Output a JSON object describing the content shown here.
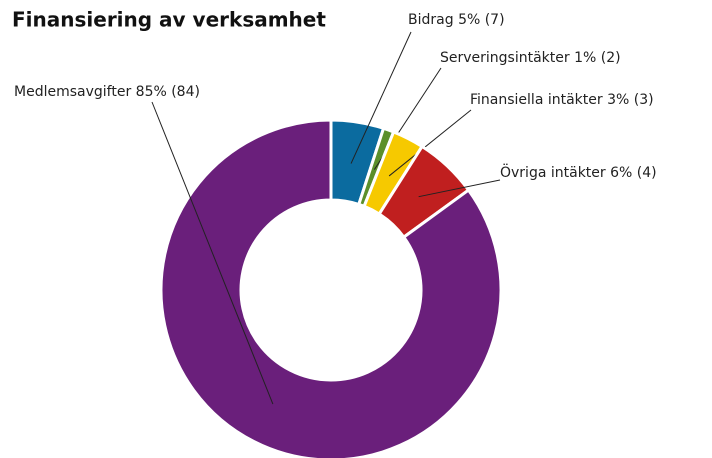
{
  "chart_data": {
    "type": "donut",
    "title": "Finansiering av verksamhet",
    "categories": [
      "Bidrag",
      "Serveringsintäkter",
      "Finansiella intäkter",
      "Övriga intäkter",
      "Medlemsavgifter"
    ],
    "values": [
      5,
      1,
      3,
      6,
      85
    ],
    "value_labels": [
      "5% (7)",
      "1% (2)",
      "3% (3)",
      "6% (4)",
      "85% (84)"
    ],
    "colors": [
      "#0b6b9f",
      "#5b8f2b",
      "#f6c900",
      "#c01f1f",
      "#6a1f7b"
    ]
  }
}
